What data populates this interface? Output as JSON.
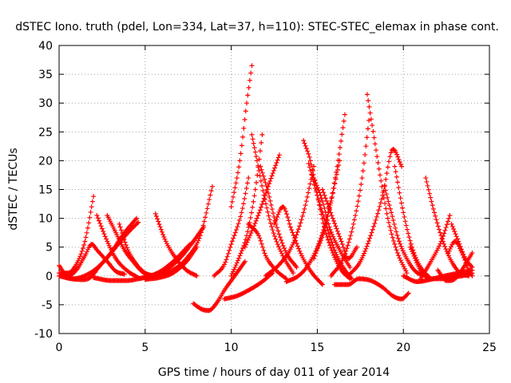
{
  "chart_data": {
    "type": "scatter",
    "title": "dSTEC Iono. truth (pdel, Lon=334, Lat=37, h=110): STEC-STEC_elemax in phase cont.",
    "xlabel": "GPS time / hours of day 011 of year 2014",
    "ylabel": "dSTEC  / TECUs",
    "xlim": [
      0,
      25
    ],
    "ylim": [
      -10,
      40
    ],
    "x_ticks": [
      0,
      5,
      10,
      15,
      20,
      25
    ],
    "y_ticks": [
      -10,
      -5,
      0,
      5,
      10,
      15,
      20,
      25,
      30,
      35,
      40
    ],
    "x_tick_labels": [
      "0",
      "5",
      "10",
      "15",
      "20",
      "25"
    ],
    "y_tick_labels": [
      "-10",
      "-5",
      "0",
      "5",
      "10",
      "15",
      "20",
      "25",
      "30",
      "35",
      "40"
    ],
    "grid": true,
    "marker": "+",
    "color": "#ff0000",
    "series": [
      {
        "x": [
          0,
          0.5,
          1.0,
          1.5,
          2.0
        ],
        "y": [
          0.5,
          0.5,
          2.0,
          6.0,
          13.8
        ]
      },
      {
        "x": [
          0,
          0.5,
          1.0,
          1.5,
          1.9,
          2.2,
          2.8,
          3.3,
          3.8
        ],
        "y": [
          1.8,
          0.0,
          1.0,
          3.5,
          5.5,
          4.5,
          2.5,
          0.8,
          0.3
        ]
      },
      {
        "x": [
          0,
          0.8,
          1.8,
          2.6,
          3.3,
          4.0,
          4.6
        ],
        "y": [
          0.0,
          -0.5,
          0.5,
          2.5,
          5.0,
          7.5,
          9.3
        ]
      },
      {
        "x": [
          0.3,
          1.0,
          1.8,
          2.3,
          3.0,
          3.8,
          4.5
        ],
        "y": [
          0.0,
          -0.6,
          -0.3,
          1.5,
          4.0,
          7.5,
          10.0
        ]
      },
      {
        "x": [
          2.2,
          2.8,
          3.3,
          4.0,
          4.6
        ],
        "y": [
          10.5,
          6.0,
          3.0,
          0.8,
          -0.3
        ]
      },
      {
        "x": [
          2.8,
          3.3,
          3.8,
          4.3,
          4.8,
          5.3
        ],
        "y": [
          10.5,
          7.5,
          4.5,
          2.5,
          0.8,
          0.0
        ]
      },
      {
        "x": [
          3.5,
          4.0,
          4.5,
          5.0,
          5.5
        ],
        "y": [
          9.0,
          4.5,
          2.0,
          0.5,
          0.0
        ]
      },
      {
        "x": [
          2.0,
          3.0,
          4.0,
          4.6,
          5.3,
          6.0,
          6.8,
          7.6
        ],
        "y": [
          -0.3,
          -0.8,
          -0.8,
          -0.5,
          0.0,
          1.0,
          3.0,
          5.5
        ]
      },
      {
        "x": [
          4.6,
          5.4,
          6.2,
          7.0,
          7.8,
          8.4
        ],
        "y": [
          -0.5,
          0.0,
          1.0,
          3.0,
          6.0,
          8.5
        ]
      },
      {
        "x": [
          5.0,
          5.8,
          6.6,
          7.4,
          8.0
        ],
        "y": [
          -0.6,
          -0.3,
          0.5,
          2.5,
          5.0
        ]
      },
      {
        "x": [
          5.6,
          6.2,
          6.8,
          7.4,
          8.0
        ],
        "y": [
          10.8,
          6.0,
          3.0,
          1.0,
          0.0
        ]
      },
      {
        "x": [
          5.8,
          6.6,
          7.4,
          8.2,
          8.9
        ],
        "y": [
          0.0,
          1.0,
          3.0,
          7.0,
          15.5
        ]
      },
      {
        "x": [
          7.8,
          8.3,
          8.7,
          9.2,
          9.6,
          10.2,
          10.8
        ],
        "y": [
          -4.8,
          -5.8,
          -6.0,
          -4.5,
          -2.5,
          0.0,
          2.5
        ]
      },
      {
        "x": [
          9.6,
          10.3,
          11.0,
          11.8,
          12.4
        ],
        "y": [
          -4.0,
          -3.5,
          -2.5,
          -1.0,
          0.5
        ]
      },
      {
        "x": [
          10.0,
          10.5,
          10.9,
          11.2
        ],
        "y": [
          12.0,
          20.0,
          30.0,
          36.5
        ]
      },
      {
        "x": [
          9.0,
          9.6,
          10.0,
          10.6,
          11.0
        ],
        "y": [
          0.0,
          2.0,
          5.5,
          11.0,
          17.0
        ]
      },
      {
        "x": [
          10.0,
          10.5,
          10.9,
          11.4,
          11.8
        ],
        "y": [
          0.0,
          3.5,
          7.0,
          15.0,
          24.5
        ]
      },
      {
        "x": [
          11.2,
          11.5,
          11.9,
          12.4,
          13.0,
          13.6
        ],
        "y": [
          24.5,
          20.0,
          14.0,
          8.0,
          3.5,
          0.5
        ]
      },
      {
        "x": [
          11.0,
          11.6,
          12.0,
          12.6,
          13.2
        ],
        "y": [
          9.0,
          7.0,
          3.5,
          1.0,
          -0.5
        ]
      },
      {
        "x": [
          11.7,
          12.1,
          12.6,
          13.2,
          13.8
        ],
        "y": [
          19.0,
          15.0,
          9.0,
          4.0,
          1.5
        ]
      },
      {
        "x": [
          10.8,
          11.5,
          12.2,
          12.8
        ],
        "y": [
          5.0,
          10.0,
          16.0,
          21.0
        ]
      },
      {
        "x": [
          12.0,
          12.8,
          13.5,
          14.2,
          14.8
        ],
        "y": [
          0.0,
          2.0,
          5.0,
          11.0,
          19.0
        ]
      },
      {
        "x": [
          12.5,
          13.0,
          13.5,
          14.1,
          14.7,
          15.3
        ],
        "y": [
          9.0,
          12.0,
          8.0,
          3.5,
          0.5,
          -1.5
        ]
      },
      {
        "x": [
          14.2,
          14.6,
          15.0,
          15.4,
          15.9,
          16.4,
          16.9
        ],
        "y": [
          23.5,
          20.0,
          14.0,
          8.5,
          4.0,
          1.0,
          -0.5
        ]
      },
      {
        "x": [
          14.5,
          15.0,
          15.5,
          16.0,
          16.5,
          17.0
        ],
        "y": [
          19.5,
          14.0,
          9.0,
          4.5,
          1.5,
          -0.5
        ]
      },
      {
        "x": [
          14.8,
          15.3,
          15.7,
          16.3,
          16.9
        ],
        "y": [
          17.0,
          13.0,
          8.5,
          4.5,
          1.5
        ]
      },
      {
        "x": [
          13.2,
          13.9,
          14.5,
          15.2,
          15.8,
          16.3
        ],
        "y": [
          -1.0,
          0.0,
          2.0,
          6.5,
          13.0,
          20.0
        ]
      },
      {
        "x": [
          14.8,
          15.5,
          16.1,
          16.6
        ],
        "y": [
          3.0,
          9.0,
          18.0,
          28.0
        ]
      },
      {
        "x": [
          15.3,
          15.9,
          16.4,
          16.8,
          17.3
        ],
        "y": [
          15.0,
          10.0,
          6.0,
          3.0,
          5.0
        ]
      },
      {
        "x": [
          15.8,
          16.5,
          17.1,
          17.6,
          18.0
        ],
        "y": [
          0.0,
          3.0,
          9.0,
          17.0,
          27.0
        ]
      },
      {
        "x": [
          17.9,
          18.3,
          18.7,
          19.1,
          19.6,
          20.2
        ],
        "y": [
          31.5,
          24.0,
          16.5,
          10.0,
          4.5,
          0.5
        ]
      },
      {
        "x": [
          16.0,
          16.8,
          17.4,
          18.1,
          18.8,
          19.4,
          19.9,
          20.3
        ],
        "y": [
          -1.5,
          -1.5,
          -0.5,
          -0.8,
          -2.0,
          -3.5,
          -4.0,
          -3.0
        ]
      },
      {
        "x": [
          16.8,
          17.5,
          18.1,
          18.8,
          19.4,
          19.9
        ],
        "y": [
          0.0,
          2.5,
          7.0,
          14.0,
          22.0,
          19.0
        ]
      },
      {
        "x": [
          18.9,
          19.3,
          19.7,
          20.2,
          20.7,
          21.3
        ],
        "y": [
          15.5,
          11.0,
          6.5,
          3.0,
          0.8,
          0.0
        ]
      },
      {
        "x": [
          19.5,
          20.0,
          20.5,
          21.0,
          21.6
        ],
        "y": [
          19.0,
          11.0,
          5.0,
          1.5,
          -0.5
        ]
      },
      {
        "x": [
          20.4,
          21.0,
          21.6,
          22.2,
          22.8,
          23.4,
          24.0
        ],
        "y": [
          5.0,
          1.0,
          -0.5,
          -0.5,
          -0.2,
          0.0,
          0.5
        ]
      },
      {
        "x": [
          20.0,
          20.8,
          21.6,
          22.4,
          23.2,
          24.0
        ],
        "y": [
          0.0,
          -1.0,
          -0.6,
          0.0,
          0.5,
          1.0
        ]
      },
      {
        "x": [
          21.3,
          21.8,
          22.3,
          22.8,
          23.3,
          23.8
        ],
        "y": [
          17.0,
          11.0,
          6.0,
          2.5,
          0.5,
          0.0
        ]
      },
      {
        "x": [
          22.0,
          22.5,
          23.0,
          23.5,
          24.0
        ],
        "y": [
          1.0,
          -0.8,
          -0.5,
          1.5,
          4.0
        ]
      },
      {
        "x": [
          21.0,
          21.6,
          22.2,
          22.7
        ],
        "y": [
          -0.5,
          2.5,
          6.0,
          10.5
        ]
      },
      {
        "x": [
          22.8,
          23.2,
          23.6,
          24.0
        ],
        "y": [
          9.0,
          6.0,
          3.0,
          1.5
        ]
      },
      {
        "x": [
          22.6,
          23.0,
          23.4,
          23.8,
          24.0
        ],
        "y": [
          4.0,
          6.0,
          4.0,
          1.0,
          0.0
        ]
      }
    ]
  }
}
